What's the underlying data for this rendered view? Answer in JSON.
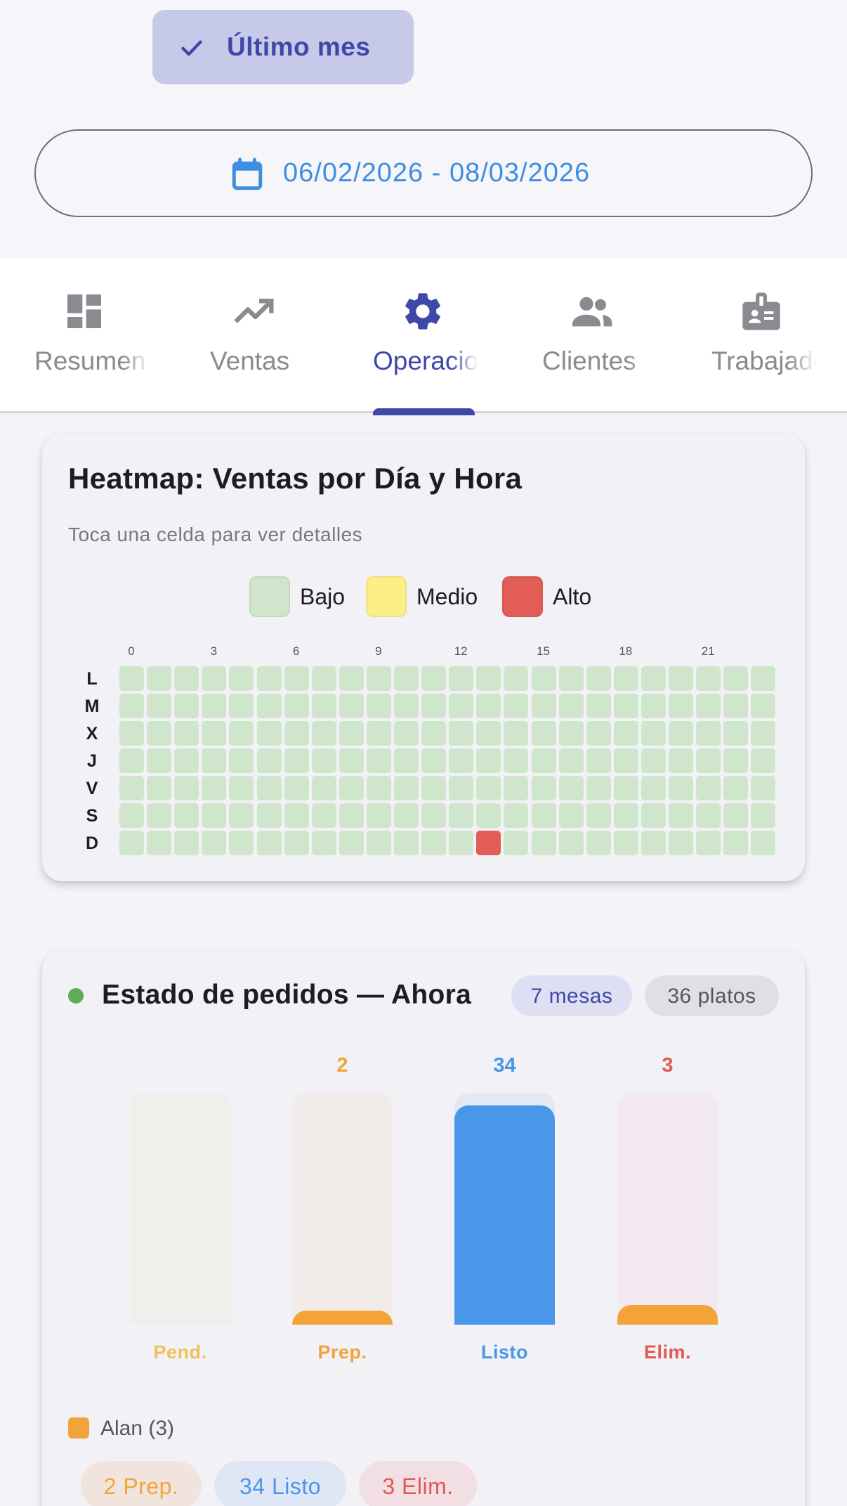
{
  "filters": {
    "last_month_label": "Último mes",
    "date_range": "06/02/2026 - 08/03/2026"
  },
  "tabs": [
    {
      "label": "Resumen",
      "icon": "dashboard-icon",
      "active": false
    },
    {
      "label": "Ventas",
      "icon": "trending-up-icon",
      "active": false
    },
    {
      "label": "Operaciones",
      "icon": "gear-icon",
      "active": true
    },
    {
      "label": "Clientes",
      "icon": "people-icon",
      "active": false
    },
    {
      "label": "Trabajadores",
      "icon": "badge-icon",
      "active": false
    }
  ],
  "heatmap": {
    "title": "Heatmap: Ventas por Día y Hora",
    "subtitle": "Toca una celda para ver detalles",
    "legend": [
      {
        "label": "Bajo",
        "color": "#cfe6cc"
      },
      {
        "label": "Medio",
        "color": "#fcef86"
      },
      {
        "label": "Alto",
        "color": "#e25d55"
      }
    ],
    "hour_ticks": [
      "0",
      "3",
      "6",
      "9",
      "12",
      "15",
      "18",
      "21"
    ],
    "days": [
      "L",
      "M",
      "X",
      "J",
      "V",
      "S",
      "D"
    ],
    "levels": [
      [
        0,
        0,
        0,
        0,
        0,
        0,
        0,
        0,
        0,
        0,
        0,
        0,
        0,
        0,
        0,
        0,
        0,
        0,
        0,
        0,
        0,
        0,
        0,
        0
      ],
      [
        0,
        0,
        0,
        0,
        0,
        0,
        0,
        0,
        0,
        0,
        0,
        0,
        0,
        0,
        0,
        0,
        0,
        0,
        0,
        0,
        0,
        0,
        0,
        0
      ],
      [
        0,
        0,
        0,
        0,
        0,
        0,
        0,
        0,
        0,
        0,
        0,
        0,
        0,
        0,
        0,
        0,
        0,
        0,
        0,
        0,
        0,
        0,
        0,
        0
      ],
      [
        0,
        0,
        0,
        0,
        0,
        0,
        0,
        0,
        0,
        0,
        0,
        0,
        0,
        0,
        0,
        0,
        0,
        0,
        0,
        0,
        0,
        0,
        0,
        0
      ],
      [
        0,
        0,
        0,
        0,
        0,
        0,
        0,
        0,
        0,
        0,
        0,
        0,
        0,
        0,
        0,
        0,
        0,
        0,
        0,
        0,
        0,
        0,
        0,
        0
      ],
      [
        0,
        0,
        0,
        0,
        0,
        0,
        0,
        0,
        0,
        0,
        0,
        0,
        0,
        0,
        0,
        0,
        0,
        0,
        0,
        0,
        0,
        0,
        0,
        0
      ],
      [
        0,
        0,
        0,
        0,
        0,
        0,
        0,
        0,
        0,
        0,
        0,
        0,
        0,
        2,
        0,
        0,
        0,
        0,
        0,
        0,
        0,
        0,
        0,
        0
      ]
    ]
  },
  "orders": {
    "title": "Estado de pedidos — Ahora",
    "badge_months": "7 mesas",
    "badge_dishes": "36 platos",
    "scale_max": 36,
    "bars": [
      {
        "label": "Pend.",
        "value": null,
        "value_text": "",
        "color": "#f2c05c",
        "track": "#efefec"
      },
      {
        "label": "Prep.",
        "value": 2,
        "value_text": "2",
        "color": "#f2a33a",
        "track": "#f1ece9"
      },
      {
        "label": "Listo",
        "value": 34,
        "value_text": "34",
        "color": "#4a96e8",
        "track": "#e3e8f5"
      },
      {
        "label": "Elim.",
        "value": 3,
        "value_text": "3",
        "color": "#e05a52",
        "track": "#f1e9ef",
        "fill_color": "#f2a33a"
      }
    ],
    "worker": {
      "name": "Alan (3)",
      "pills": [
        {
          "label": "2 Prep.",
          "color": "#f2a33a",
          "bg": "#f1e4dc"
        },
        {
          "label": "34 Listo",
          "color": "#4a96e8",
          "bg": "#dfe7f6"
        },
        {
          "label": "3 Elim.",
          "color": "#e05a52",
          "bg": "#f1dfe3"
        }
      ]
    }
  }
}
